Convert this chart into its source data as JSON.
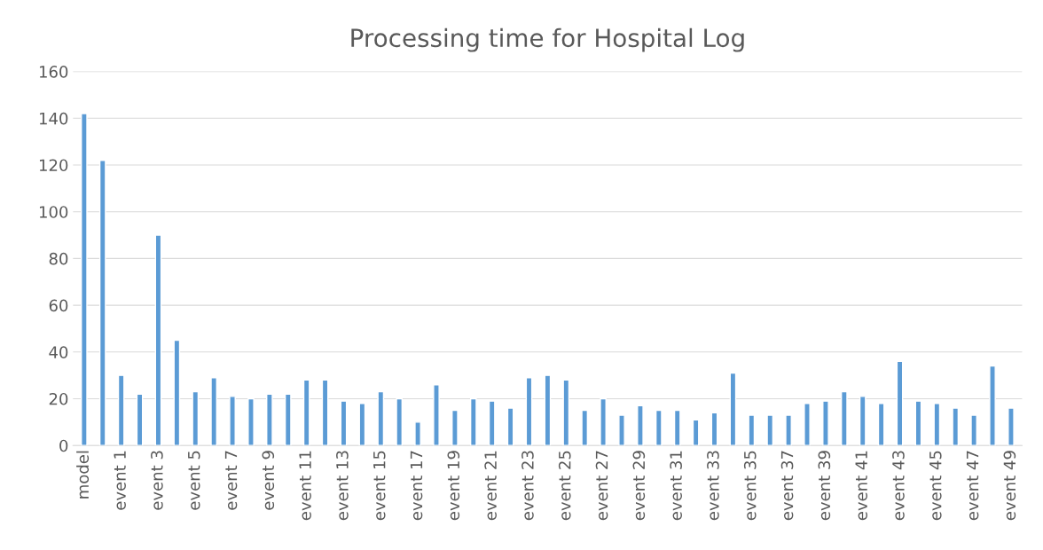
{
  "chart_data": {
    "type": "bar",
    "title": "Processing time for Hospital Log",
    "categories": [
      "model",
      null,
      "event 1",
      null,
      "event 3",
      null,
      "event 5",
      null,
      "event 7",
      null,
      "event 9",
      null,
      "event 11",
      null,
      "event 13",
      null,
      "event 15",
      null,
      "event 17",
      null,
      "event 19",
      null,
      "event 21",
      null,
      "event 23",
      null,
      "event 25",
      null,
      "event 27",
      null,
      "event 29",
      null,
      "event 31",
      null,
      "event 33",
      null,
      "event 35",
      null,
      "event 37",
      null,
      "event 39",
      null,
      "event 41",
      null,
      "event 43",
      null,
      "event 45",
      null,
      "event 47",
      null,
      "event 49"
    ],
    "values": [
      142,
      122,
      30,
      22,
      90,
      45,
      23,
      29,
      21,
      20,
      22,
      22,
      28,
      28,
      19,
      18,
      23,
      20,
      10,
      26,
      15,
      20,
      19,
      16,
      29,
      30,
      28,
      15,
      20,
      13,
      17,
      15,
      15,
      11,
      14,
      31,
      13,
      13,
      13,
      18,
      19,
      23,
      21,
      18,
      36,
      19,
      18,
      16,
      13,
      34,
      16
    ],
    "color": "#5b9bd5",
    "ylim": [
      0,
      160
    ],
    "yticks": [
      0,
      20,
      40,
      60,
      80,
      100,
      120,
      140,
      160
    ],
    "grid": "y"
  }
}
